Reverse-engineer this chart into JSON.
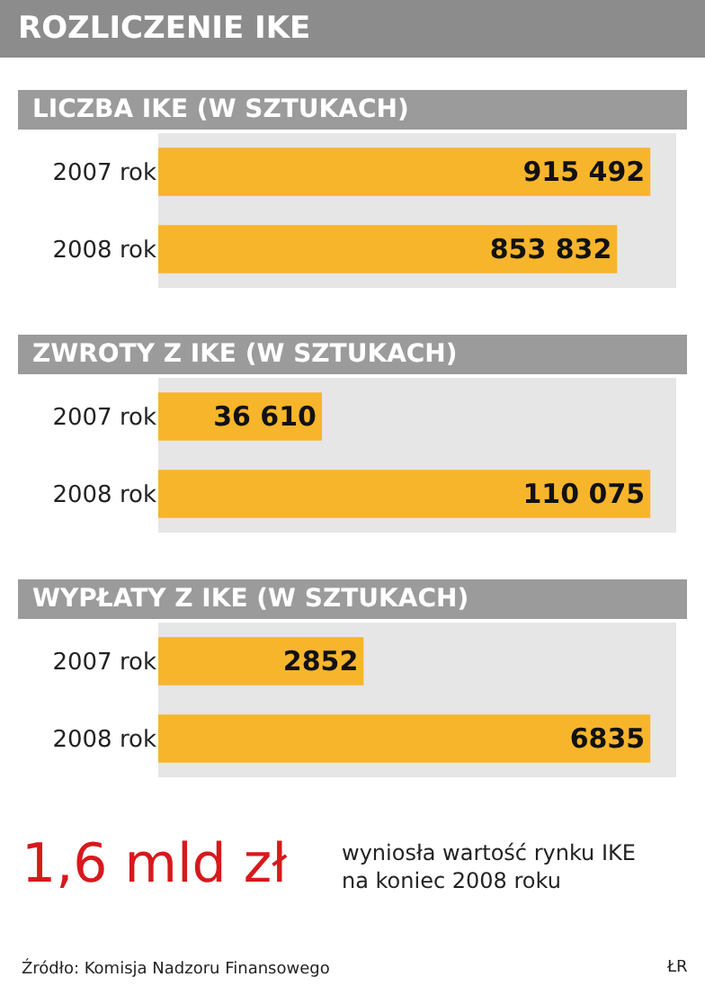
{
  "chart_data": [
    {
      "type": "other",
      "title": "ROZLICZENIE IKE"
    },
    {
      "type": "bar",
      "orientation": "horizontal",
      "title": "LICZBA IKE (W SZTUKACH)",
      "categories": [
        "2007 rok",
        "2008 rok"
      ],
      "values": [
        915492,
        853832
      ],
      "value_labels": [
        "915 492",
        "853 832"
      ],
      "color": "#f7b52c"
    },
    {
      "type": "bar",
      "orientation": "horizontal",
      "title": "ZWROTY Z IKE (W SZTUKACH)",
      "categories": [
        "2007 rok",
        "2008 rok"
      ],
      "values": [
        36610,
        110075
      ],
      "value_labels": [
        "36 610",
        "110 075"
      ],
      "color": "#f7b52c"
    },
    {
      "type": "bar",
      "orientation": "horizontal",
      "title": "WYPŁATY Z IKE (W SZTUKACH)",
      "categories": [
        "2007 rok",
        "2008 rok"
      ],
      "values": [
        2852,
        6835
      ],
      "value_labels": [
        "2852",
        "6835"
      ],
      "color": "#f7b52c"
    },
    {
      "type": "other",
      "annotations": [
        "1,6 mld zł",
        "wyniosła wartość rynku IKE na koniec 2008 roku",
        "Źródło: Komisja Nadzoru Finansowego",
        "ŁR"
      ]
    }
  ]
}
